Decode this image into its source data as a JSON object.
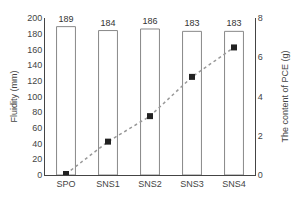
{
  "chart_data": {
    "type": "bar",
    "categories": [
      "SPO",
      "SNS1",
      "SNS2",
      "SNS3",
      "SNS4"
    ],
    "series": [
      {
        "type": "bar",
        "color": "#ffffff",
        "values": [
          189,
          184,
          186,
          183,
          183
        ],
        "data_labels": true
      },
      {
        "type": "line",
        "axis": "y2",
        "color": "#999999",
        "marker": "square",
        "line_style": "dot",
        "values": [
          0.05,
          1.7,
          3.0,
          5.0,
          6.5
        ]
      }
    ],
    "ylabel": "Fluidity (mm)",
    "y2label": "The content of PCE (g)",
    "ylim": [
      0,
      200
    ],
    "yticks": [
      0,
      20,
      40,
      60,
      80,
      100,
      120,
      140,
      160,
      180,
      200
    ],
    "y2lim": [
      0,
      8
    ],
    "y2ticks": [
      0,
      2,
      4,
      6,
      8
    ],
    "grid": false
  }
}
